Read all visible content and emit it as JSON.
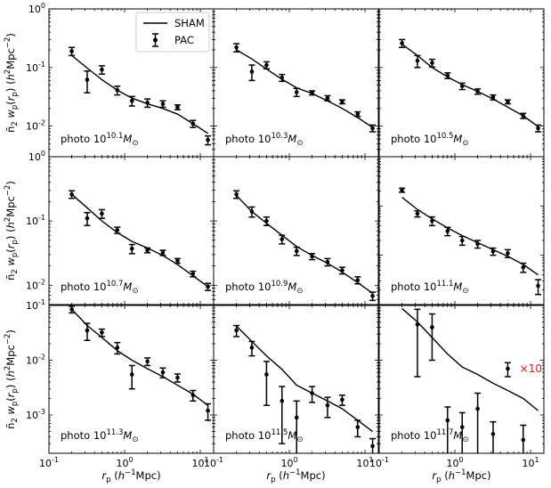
{
  "legend": {
    "line_label": "SHAM",
    "points_label": "PAC",
    "placement": "upper-center of first panel"
  },
  "axes": {
    "xlabel": "r_p (h^-1 Mpc)",
    "ylabel": "n̄2 wp(rp) (h² Mpc⁻²)",
    "xscale": "log",
    "yscale": "log",
    "x_ticks": [
      "10^-1",
      "10^0",
      "10^1"
    ],
    "y_ticks_top": [
      "10^-2",
      "10^-1",
      "10^0"
    ],
    "y_ticks_mid": [
      "10^-2",
      "10^-1",
      "10^0"
    ],
    "y_ticks_bottom": [
      "10^-3",
      "10^-2",
      "10^-1"
    ]
  },
  "chart_data": [
    {
      "type": "line",
      "panel": "photo 10^10.1 M☉",
      "label_prefix": "photo 10",
      "label_exp": "10.1",
      "xlim": [
        0.1,
        15
      ],
      "ylim": [
        0.003,
        1
      ],
      "yscale": "log",
      "xscale": "log",
      "sham": {
        "x": [
          0.2,
          0.32,
          0.5,
          0.8,
          1.25,
          2.0,
          3.2,
          5.0,
          8.0,
          12.6
        ],
        "y": [
          0.16,
          0.098,
          0.062,
          0.041,
          0.03,
          0.024,
          0.02,
          0.016,
          0.011,
          0.0075
        ]
      },
      "pac": {
        "x": [
          0.2,
          0.32,
          0.5,
          0.8,
          1.25,
          2.0,
          3.2,
          5.0,
          8.0,
          12.6
        ],
        "y": [
          0.19,
          0.062,
          0.092,
          0.041,
          0.027,
          0.025,
          0.024,
          0.021,
          0.011,
          0.0058
        ],
        "err": [
          0.03,
          0.025,
          0.015,
          0.007,
          0.005,
          0.004,
          0.003,
          0.002,
          0.0015,
          0.001
        ]
      }
    },
    {
      "type": "line",
      "panel": "photo 10^10.3 M☉",
      "label_prefix": "photo 10",
      "label_exp": "10.3",
      "xlim": [
        0.1,
        15
      ],
      "ylim": [
        0.003,
        1
      ],
      "yscale": "log",
      "xscale": "log",
      "sham": {
        "x": [
          0.2,
          0.32,
          0.5,
          0.8,
          1.25,
          2.0,
          3.2,
          5.0,
          8.0,
          12.6
        ],
        "y": [
          0.2,
          0.14,
          0.094,
          0.063,
          0.045,
          0.036,
          0.027,
          0.02,
          0.014,
          0.0095
        ]
      },
      "pac": {
        "x": [
          0.2,
          0.32,
          0.5,
          0.8,
          1.25,
          2.0,
          3.2,
          5.0,
          8.0,
          12.6
        ],
        "y": [
          0.22,
          0.085,
          0.11,
          0.067,
          0.038,
          0.037,
          0.03,
          0.026,
          0.016,
          0.0092
        ],
        "err": [
          0.035,
          0.025,
          0.015,
          0.009,
          0.006,
          0.003,
          0.003,
          0.002,
          0.0015,
          0.0012
        ]
      }
    },
    {
      "type": "line",
      "panel": "photo 10^10.5 M☉",
      "label_prefix": "photo 10",
      "label_exp": "10.5",
      "xlim": [
        0.1,
        15
      ],
      "ylim": [
        0.003,
        1
      ],
      "yscale": "log",
      "xscale": "log",
      "sham": {
        "x": [
          0.2,
          0.32,
          0.5,
          0.8,
          1.25,
          2.0,
          3.2,
          5.0,
          8.0,
          12.6
        ],
        "y": [
          0.25,
          0.16,
          0.1,
          0.069,
          0.051,
          0.039,
          0.029,
          0.021,
          0.015,
          0.0098
        ]
      },
      "pac": {
        "x": [
          0.2,
          0.32,
          0.5,
          0.8,
          1.25,
          2.0,
          3.2,
          5.0,
          8.0,
          12.6
        ],
        "y": [
          0.26,
          0.13,
          0.12,
          0.073,
          0.048,
          0.039,
          0.031,
          0.026,
          0.015,
          0.0092
        ],
        "err": [
          0.04,
          0.03,
          0.018,
          0.008,
          0.006,
          0.004,
          0.003,
          0.002,
          0.0015,
          0.0012
        ]
      }
    },
    {
      "type": "line",
      "panel": "photo 10^10.7 M☉",
      "label_prefix": "photo 10",
      "label_exp": "10.7",
      "xlim": [
        0.1,
        15
      ],
      "ylim": [
        0.005,
        1
      ],
      "yscale": "log",
      "xscale": "log",
      "sham": {
        "x": [
          0.2,
          0.32,
          0.5,
          0.8,
          1.25,
          2.0,
          3.2,
          5.0,
          8.0,
          12.6
        ],
        "y": [
          0.26,
          0.16,
          0.1,
          0.066,
          0.048,
          0.038,
          0.029,
          0.021,
          0.014,
          0.0095
        ]
      },
      "pac": {
        "x": [
          0.2,
          0.32,
          0.5,
          0.8,
          1.25,
          2.0,
          3.2,
          5.0,
          8.0,
          12.6
        ],
        "y": [
          0.26,
          0.11,
          0.13,
          0.072,
          0.037,
          0.035,
          0.032,
          0.024,
          0.015,
          0.0095
        ],
        "err": [
          0.035,
          0.025,
          0.02,
          0.008,
          0.006,
          0.003,
          0.003,
          0.002,
          0.0015,
          0.0012
        ]
      }
    },
    {
      "type": "line",
      "panel": "photo 10^10.9 M☉",
      "label_prefix": "photo 10",
      "label_exp": "10.9",
      "xlim": [
        0.1,
        15
      ],
      "ylim": [
        0.005,
        1
      ],
      "yscale": "log",
      "xscale": "log",
      "sham": {
        "x": [
          0.2,
          0.32,
          0.5,
          0.8,
          1.25,
          2.0,
          3.2,
          5.0,
          8.0,
          12.6
        ],
        "y": [
          0.25,
          0.14,
          0.092,
          0.06,
          0.04,
          0.029,
          0.022,
          0.016,
          0.011,
          0.0075
        ]
      },
      "pac": {
        "x": [
          0.2,
          0.32,
          0.5,
          0.8,
          1.25,
          2.0,
          3.2,
          5.0,
          8.0,
          12.6
        ],
        "y": [
          0.26,
          0.14,
          0.1,
          0.052,
          0.034,
          0.028,
          0.023,
          0.017,
          0.012,
          0.0068
        ],
        "err": [
          0.035,
          0.025,
          0.015,
          0.008,
          0.005,
          0.003,
          0.003,
          0.002,
          0.0015,
          0.001
        ]
      }
    },
    {
      "type": "line",
      "panel": "photo 10^11.1 M☉",
      "label_prefix": "photo 10",
      "label_exp": "11.1",
      "xlim": [
        0.1,
        15
      ],
      "ylim": [
        0.001,
        1
      ],
      "yscale": "log",
      "xscale": "log",
      "sham": {
        "x": [
          0.2,
          0.32,
          0.5,
          0.8,
          1.25,
          2.0,
          3.2,
          5.0,
          8.0,
          12.6
        ],
        "y": [
          0.15,
          0.085,
          0.055,
          0.036,
          0.025,
          0.018,
          0.013,
          0.0095,
          0.0065,
          0.004
        ]
      },
      "pac": {
        "x": [
          0.2,
          0.32,
          0.5,
          0.8,
          1.25,
          2.0,
          3.2,
          5.0,
          8.0,
          12.6
        ],
        "y": [
          0.21,
          0.07,
          0.05,
          0.031,
          0.02,
          0.017,
          0.012,
          0.011,
          0.0057,
          0.0024
        ],
        "err": [
          0.02,
          0.01,
          0.01,
          0.006,
          0.004,
          0.003,
          0.002,
          0.002,
          0.0012,
          0.0008
        ]
      }
    },
    {
      "type": "line",
      "panel": "photo 10^11.3 M☉",
      "label_prefix": "photo 10",
      "label_exp": "11.3",
      "xlim": [
        0.1,
        15
      ],
      "ylim": [
        0.0002,
        0.1
      ],
      "yscale": "log",
      "xscale": "log",
      "sham": {
        "x": [
          0.2,
          0.32,
          0.5,
          0.8,
          1.25,
          2.0,
          3.2,
          5.0,
          8.0,
          12.6
        ],
        "y": [
          0.085,
          0.043,
          0.026,
          0.015,
          0.01,
          0.007,
          0.005,
          0.0035,
          0.0024,
          0.0015
        ]
      },
      "pac": {
        "x": [
          0.2,
          0.32,
          0.5,
          0.8,
          1.25,
          2.0,
          3.2,
          5.0,
          8.0,
          12.6
        ],
        "y": [
          0.085,
          0.035,
          0.032,
          0.017,
          0.0055,
          0.0095,
          0.006,
          0.0048,
          0.0023,
          0.0012
        ],
        "err": [
          0.012,
          0.012,
          0.005,
          0.004,
          0.0025,
          0.0015,
          0.0012,
          0.0008,
          0.0005,
          0.0004
        ]
      }
    },
    {
      "type": "line",
      "panel": "photo 10^11.5 M☉",
      "label_prefix": "photo 10",
      "label_exp": "11.5",
      "xlim": [
        0.1,
        15
      ],
      "ylim": [
        0.0002,
        0.1
      ],
      "yscale": "log",
      "xscale": "log",
      "sham": {
        "x": [
          0.2,
          0.32,
          0.5,
          0.8,
          1.25,
          2.0,
          3.2,
          5.0,
          8.0,
          12.6
        ],
        "y": [
          0.042,
          0.022,
          0.012,
          0.0068,
          0.0035,
          0.0025,
          0.0018,
          0.0013,
          0.0008,
          0.0005
        ]
      },
      "pac": {
        "x": [
          0.2,
          0.32,
          0.5,
          0.8,
          1.25,
          2.0,
          3.2,
          5.0,
          8.0,
          12.6
        ],
        "y": [
          0.035,
          0.017,
          0.0055,
          0.0018,
          0.0009,
          0.0025,
          0.0015,
          0.0019,
          0.0006,
          0.00027
        ],
        "err": [
          0.008,
          0.005,
          0.004,
          0.0015,
          0.0009,
          0.0008,
          0.0006,
          0.0004,
          0.0002,
          0.0001
        ]
      }
    },
    {
      "type": "line",
      "panel": "photo 10^11.7 M☉",
      "label_prefix": "photo 10",
      "label_exp": "11.7",
      "xlim": [
        0.1,
        15
      ],
      "ylim": [
        0.0002,
        0.1
      ],
      "yscale": "log",
      "xscale": "log",
      "annotation": "×10",
      "sham": {
        "x": [
          0.2,
          0.32,
          0.5,
          0.8,
          1.25,
          2.0,
          3.2,
          5.0,
          8.0,
          12.6
        ],
        "y": [
          0.088,
          0.05,
          0.026,
          0.013,
          0.0075,
          0.0055,
          0.0038,
          0.0028,
          0.002,
          0.0012
        ]
      },
      "pac": {
        "x": [
          0.32,
          0.5,
          0.8,
          1.25,
          2.0,
          3.2,
          5.0,
          8.0
        ],
        "y": [
          0.045,
          0.04,
          0.0008,
          0.0006,
          0.0013,
          0.00045,
          0.007,
          0.00035
        ],
        "err": [
          0.04,
          0.03,
          0.0006,
          0.0005,
          0.0012,
          0.0003,
          0.002,
          0.0003
        ]
      }
    }
  ]
}
